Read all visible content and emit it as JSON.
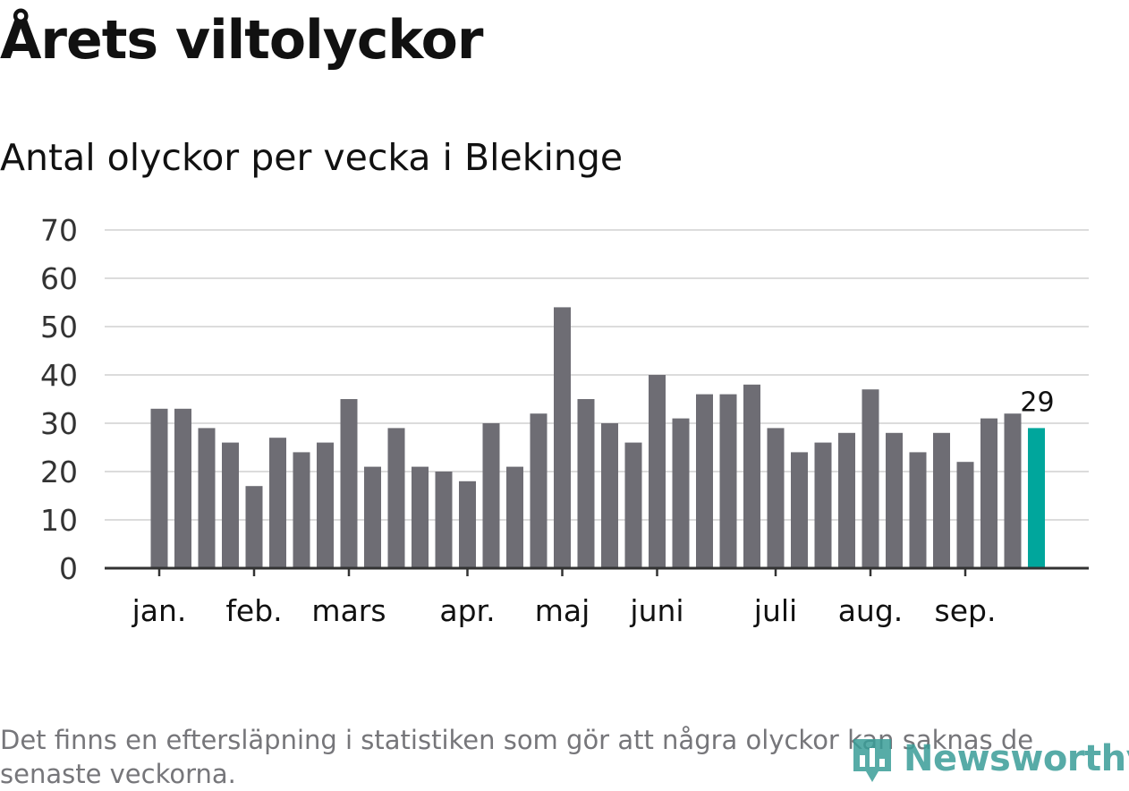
{
  "header": {
    "title": "Årets viltolyckor",
    "subtitle": "Antal olyckor per vecka i Blekinge"
  },
  "footnote": "Det finns en eftersläpning i statistiken som gör att några olyckor kan saknas de senaste veckorna.",
  "logo": {
    "text": "Newsworthy",
    "icon": "bar-chart-pin-icon"
  },
  "colors": {
    "bar": "#6e6d74",
    "highlight": "#00a69c",
    "grid": "#dcdcdc",
    "axis": "#333333"
  },
  "chart_data": {
    "type": "bar",
    "ylim": [
      0,
      70
    ],
    "yticks": [
      0,
      10,
      20,
      30,
      40,
      50,
      60,
      70
    ],
    "grid": true,
    "values": [
      33,
      33,
      29,
      26,
      17,
      27,
      24,
      26,
      35,
      21,
      29,
      21,
      20,
      18,
      30,
      21,
      32,
      54,
      35,
      30,
      26,
      40,
      31,
      36,
      36,
      38,
      29,
      24,
      26,
      28,
      37,
      28,
      24,
      28,
      22,
      31,
      32,
      29
    ],
    "highlight_index": 37,
    "highlight_label": "29",
    "month_labels": [
      {
        "label": "jan.",
        "bar_index": 0
      },
      {
        "label": "feb.",
        "bar_index": 4
      },
      {
        "label": "mars",
        "bar_index": 8
      },
      {
        "label": "apr.",
        "bar_index": 13
      },
      {
        "label": "maj",
        "bar_index": 17
      },
      {
        "label": "juni",
        "bar_index": 21
      },
      {
        "label": "juli",
        "bar_index": 26
      },
      {
        "label": "aug.",
        "bar_index": 30
      },
      {
        "label": "sep.",
        "bar_index": 34
      }
    ]
  }
}
